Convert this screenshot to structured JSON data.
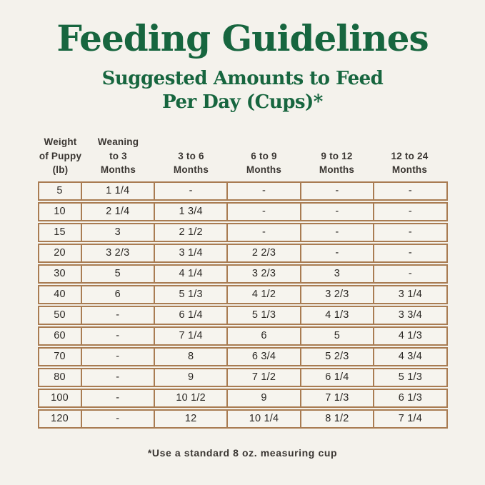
{
  "page": {
    "title": "Feeding Guidelines",
    "subtitle_line1": "Suggested Amounts to Feed",
    "subtitle_line2": "Per Day (Cups)*",
    "footnote": "*Use a standard 8 oz. measuring cup"
  },
  "colors": {
    "background": "#f4f2ec",
    "heading_green": "#17663f",
    "table_border": "#a97c52",
    "cell_text": "#2c2925",
    "header_text": "#3a3632"
  },
  "chart_data": {
    "type": "table",
    "title": "Feeding Guidelines",
    "subtitle": "Suggested Amounts to Feed Per Day (Cups)*",
    "footnote": "*Use a standard 8 oz. measuring cup",
    "columns": [
      "Weight of Puppy (lb)",
      "Weaning to 3 Months",
      "3 to 6 Months",
      "6 to 9 Months",
      "9 to 12 Months",
      "12 to 24 Months"
    ],
    "headers": [
      {
        "line1": "Weight",
        "line2": "of Puppy",
        "line3": "(lb)"
      },
      {
        "line1": "Weaning",
        "line2": "to 3",
        "line3": "Months"
      },
      {
        "line1": "3 to 6",
        "line2": "Months"
      },
      {
        "line1": "6 to 9",
        "line2": "Months"
      },
      {
        "line1": "9 to 12",
        "line2": "Months"
      },
      {
        "line1": "12 to 24",
        "line2": "Months"
      }
    ],
    "rows": [
      [
        "5",
        "1 1/4",
        "-",
        "-",
        "-",
        "-"
      ],
      [
        "10",
        "2 1/4",
        "1 3/4",
        "-",
        "-",
        "-"
      ],
      [
        "15",
        "3",
        "2 1/2",
        "-",
        "-",
        "-"
      ],
      [
        "20",
        "3 2/3",
        "3 1/4",
        "2 2/3",
        "-",
        "-"
      ],
      [
        "30",
        "5",
        "4 1/4",
        "3 2/3",
        "3",
        "-"
      ],
      [
        "40",
        "6",
        "5 1/3",
        "4 1/2",
        "3 2/3",
        "3 1/4"
      ],
      [
        "50",
        "-",
        "6 1/4",
        "5 1/3",
        "4 1/3",
        "3 3/4"
      ],
      [
        "60",
        "-",
        "7 1/4",
        "6",
        "5",
        "4 1/3"
      ],
      [
        "70",
        "-",
        "8",
        "6 3/4",
        "5 2/3",
        "4 3/4"
      ],
      [
        "80",
        "-",
        "9",
        "7 1/2",
        "6 1/4",
        "5 1/3"
      ],
      [
        "100",
        "-",
        "10 1/2",
        "9",
        "7 1/3",
        "6 1/3"
      ],
      [
        "120",
        "-",
        "12",
        "10 1/4",
        "8 1/2",
        "7 1/4"
      ]
    ]
  }
}
